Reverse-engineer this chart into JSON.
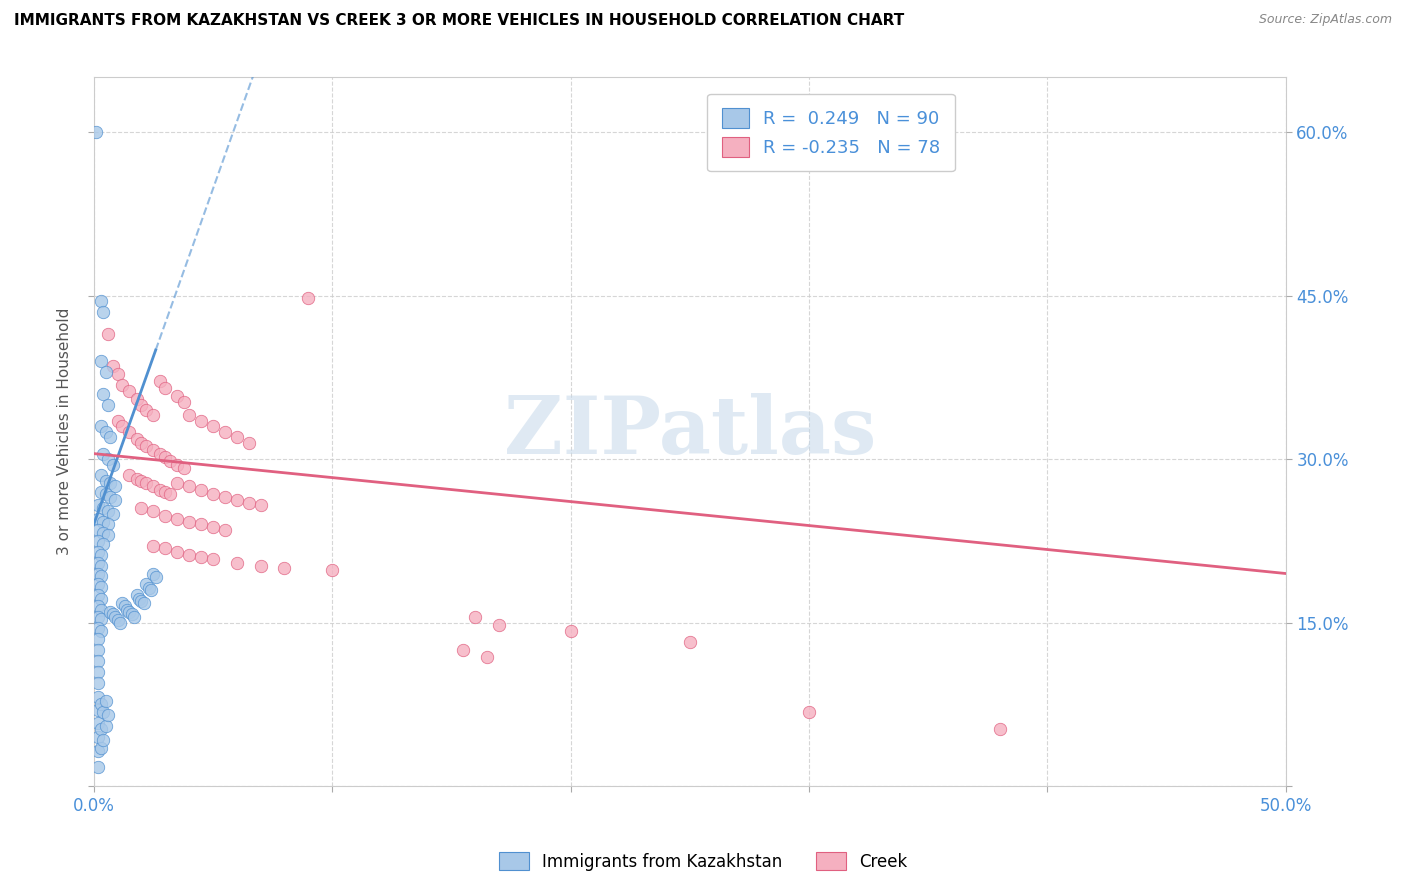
{
  "title": "IMMIGRANTS FROM KAZAKHSTAN VS CREEK 3 OR MORE VEHICLES IN HOUSEHOLD CORRELATION CHART",
  "source": "Source: ZipAtlas.com",
  "ylabel": "3 or more Vehicles in Household",
  "x_min": 0.0,
  "x_max": 0.5,
  "y_min": 0.0,
  "y_max": 0.65,
  "x_ticks": [
    0.0,
    0.1,
    0.2,
    0.3,
    0.4,
    0.5
  ],
  "x_tick_labels": [
    "0.0%",
    "",
    "",
    "",
    "",
    "50.0%"
  ],
  "y_ticks": [
    0.0,
    0.15,
    0.3,
    0.45,
    0.6
  ],
  "y_tick_labels_right": [
    "",
    "15.0%",
    "30.0%",
    "45.0%",
    "60.0%"
  ],
  "watermark": "ZIPatlas",
  "legend_label_blue": "Immigrants from Kazakhstan",
  "legend_label_pink": "Creek",
  "r_blue": 0.249,
  "n_blue": 90,
  "r_pink": -0.235,
  "n_pink": 78,
  "blue_color": "#a8c8e8",
  "pink_color": "#f5b0c0",
  "blue_line_color": "#5090d0",
  "pink_line_color": "#e06080",
  "blue_scatter": [
    [
      0.001,
      0.6
    ],
    [
      0.003,
      0.445
    ],
    [
      0.004,
      0.435
    ],
    [
      0.003,
      0.39
    ],
    [
      0.005,
      0.38
    ],
    [
      0.004,
      0.36
    ],
    [
      0.006,
      0.35
    ],
    [
      0.003,
      0.33
    ],
    [
      0.005,
      0.325
    ],
    [
      0.007,
      0.32
    ],
    [
      0.004,
      0.305
    ],
    [
      0.006,
      0.3
    ],
    [
      0.008,
      0.295
    ],
    [
      0.003,
      0.285
    ],
    [
      0.005,
      0.28
    ],
    [
      0.007,
      0.278
    ],
    [
      0.009,
      0.275
    ],
    [
      0.003,
      0.27
    ],
    [
      0.005,
      0.268
    ],
    [
      0.007,
      0.265
    ],
    [
      0.009,
      0.262
    ],
    [
      0.002,
      0.258
    ],
    [
      0.004,
      0.255
    ],
    [
      0.006,
      0.252
    ],
    [
      0.008,
      0.25
    ],
    [
      0.002,
      0.245
    ],
    [
      0.004,
      0.242
    ],
    [
      0.006,
      0.24
    ],
    [
      0.002,
      0.235
    ],
    [
      0.004,
      0.232
    ],
    [
      0.006,
      0.23
    ],
    [
      0.002,
      0.225
    ],
    [
      0.004,
      0.222
    ],
    [
      0.002,
      0.215
    ],
    [
      0.003,
      0.212
    ],
    [
      0.002,
      0.205
    ],
    [
      0.003,
      0.202
    ],
    [
      0.002,
      0.195
    ],
    [
      0.003,
      0.193
    ],
    [
      0.002,
      0.185
    ],
    [
      0.003,
      0.183
    ],
    [
      0.002,
      0.175
    ],
    [
      0.003,
      0.172
    ],
    [
      0.002,
      0.165
    ],
    [
      0.003,
      0.162
    ],
    [
      0.002,
      0.155
    ],
    [
      0.003,
      0.153
    ],
    [
      0.002,
      0.145
    ],
    [
      0.003,
      0.142
    ],
    [
      0.002,
      0.135
    ],
    [
      0.002,
      0.125
    ],
    [
      0.002,
      0.115
    ],
    [
      0.002,
      0.105
    ],
    [
      0.002,
      0.095
    ],
    [
      0.002,
      0.082
    ],
    [
      0.002,
      0.07
    ],
    [
      0.002,
      0.058
    ],
    [
      0.002,
      0.045
    ],
    [
      0.002,
      0.032
    ],
    [
      0.002,
      0.018
    ],
    [
      0.003,
      0.075
    ],
    [
      0.003,
      0.052
    ],
    [
      0.003,
      0.035
    ],
    [
      0.004,
      0.068
    ],
    [
      0.004,
      0.042
    ],
    [
      0.005,
      0.078
    ],
    [
      0.005,
      0.055
    ],
    [
      0.006,
      0.065
    ],
    [
      0.007,
      0.16
    ],
    [
      0.008,
      0.158
    ],
    [
      0.009,
      0.155
    ],
    [
      0.01,
      0.152
    ],
    [
      0.011,
      0.15
    ],
    [
      0.012,
      0.168
    ],
    [
      0.013,
      0.165
    ],
    [
      0.014,
      0.162
    ],
    [
      0.015,
      0.16
    ],
    [
      0.016,
      0.158
    ],
    [
      0.017,
      0.155
    ],
    [
      0.018,
      0.175
    ],
    [
      0.019,
      0.172
    ],
    [
      0.02,
      0.17
    ],
    [
      0.021,
      0.168
    ],
    [
      0.022,
      0.185
    ],
    [
      0.023,
      0.182
    ],
    [
      0.024,
      0.18
    ],
    [
      0.025,
      0.195
    ],
    [
      0.026,
      0.192
    ]
  ],
  "pink_scatter": [
    [
      0.006,
      0.415
    ],
    [
      0.008,
      0.385
    ],
    [
      0.01,
      0.378
    ],
    [
      0.012,
      0.368
    ],
    [
      0.015,
      0.362
    ],
    [
      0.018,
      0.355
    ],
    [
      0.02,
      0.35
    ],
    [
      0.022,
      0.345
    ],
    [
      0.025,
      0.34
    ],
    [
      0.028,
      0.372
    ],
    [
      0.03,
      0.365
    ],
    [
      0.035,
      0.358
    ],
    [
      0.038,
      0.352
    ],
    [
      0.01,
      0.335
    ],
    [
      0.012,
      0.33
    ],
    [
      0.015,
      0.325
    ],
    [
      0.018,
      0.318
    ],
    [
      0.02,
      0.315
    ],
    [
      0.022,
      0.312
    ],
    [
      0.025,
      0.308
    ],
    [
      0.028,
      0.305
    ],
    [
      0.03,
      0.302
    ],
    [
      0.032,
      0.298
    ],
    [
      0.035,
      0.295
    ],
    [
      0.038,
      0.292
    ],
    [
      0.04,
      0.34
    ],
    [
      0.045,
      0.335
    ],
    [
      0.05,
      0.33
    ],
    [
      0.055,
      0.325
    ],
    [
      0.06,
      0.32
    ],
    [
      0.065,
      0.315
    ],
    [
      0.015,
      0.285
    ],
    [
      0.018,
      0.282
    ],
    [
      0.02,
      0.28
    ],
    [
      0.022,
      0.278
    ],
    [
      0.025,
      0.275
    ],
    [
      0.028,
      0.272
    ],
    [
      0.03,
      0.27
    ],
    [
      0.032,
      0.268
    ],
    [
      0.035,
      0.278
    ],
    [
      0.04,
      0.275
    ],
    [
      0.045,
      0.272
    ],
    [
      0.05,
      0.268
    ],
    [
      0.055,
      0.265
    ],
    [
      0.06,
      0.262
    ],
    [
      0.065,
      0.26
    ],
    [
      0.07,
      0.258
    ],
    [
      0.02,
      0.255
    ],
    [
      0.025,
      0.252
    ],
    [
      0.03,
      0.248
    ],
    [
      0.035,
      0.245
    ],
    [
      0.04,
      0.242
    ],
    [
      0.045,
      0.24
    ],
    [
      0.05,
      0.238
    ],
    [
      0.055,
      0.235
    ],
    [
      0.09,
      0.448
    ],
    [
      0.025,
      0.22
    ],
    [
      0.03,
      0.218
    ],
    [
      0.035,
      0.215
    ],
    [
      0.04,
      0.212
    ],
    [
      0.045,
      0.21
    ],
    [
      0.05,
      0.208
    ],
    [
      0.06,
      0.205
    ],
    [
      0.07,
      0.202
    ],
    [
      0.08,
      0.2
    ],
    [
      0.1,
      0.198
    ],
    [
      0.16,
      0.155
    ],
    [
      0.17,
      0.148
    ],
    [
      0.2,
      0.142
    ],
    [
      0.25,
      0.132
    ],
    [
      0.3,
      0.068
    ],
    [
      0.38,
      0.052
    ],
    [
      0.155,
      0.125
    ],
    [
      0.165,
      0.118
    ]
  ],
  "blue_trend_x0": 0.0,
  "blue_trend_y0": 0.24,
  "blue_trend_x1": 0.026,
  "blue_trend_y1": 0.4,
  "pink_trend_x0": 0.0,
  "pink_trend_y0": 0.305,
  "pink_trend_x1": 0.5,
  "pink_trend_y1": 0.195
}
